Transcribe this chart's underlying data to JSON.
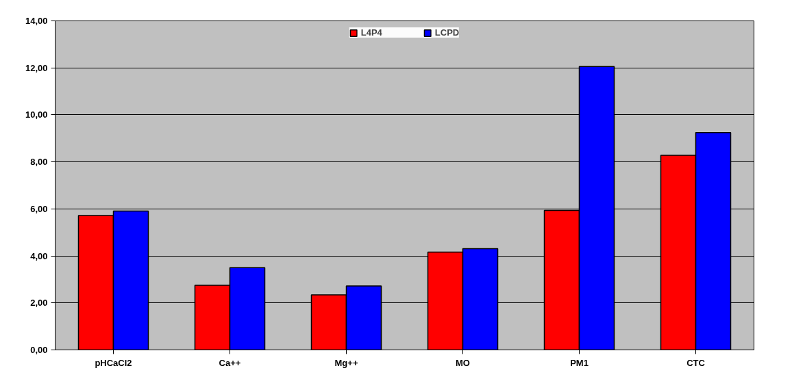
{
  "chart_data": {
    "type": "bar",
    "categories": [
      "pHCaCl2",
      "Ca++",
      "Mg++",
      "MO",
      "PM1",
      "CTC"
    ],
    "series": [
      {
        "name": "L4P4",
        "color": "#ff0000",
        "values": [
          5.72,
          2.75,
          2.34,
          4.16,
          5.94,
          8.28
        ]
      },
      {
        "name": "LCPD",
        "color": "#0000ff",
        "values": [
          5.91,
          3.5,
          2.72,
          4.31,
          12.06,
          9.25
        ]
      }
    ],
    "ylim": [
      0,
      14
    ],
    "yticks": [
      {
        "value": 0,
        "label": "0,00"
      },
      {
        "value": 2,
        "label": "2,00"
      },
      {
        "value": 4,
        "label": "4,00"
      },
      {
        "value": 6,
        "label": "6,00"
      },
      {
        "value": 8,
        "label": "8,00"
      },
      {
        "value": 10,
        "label": "10,00"
      },
      {
        "value": 12,
        "label": "12,00"
      },
      {
        "value": 14,
        "label": "14,00"
      }
    ],
    "grid": "y",
    "legend": "top"
  }
}
